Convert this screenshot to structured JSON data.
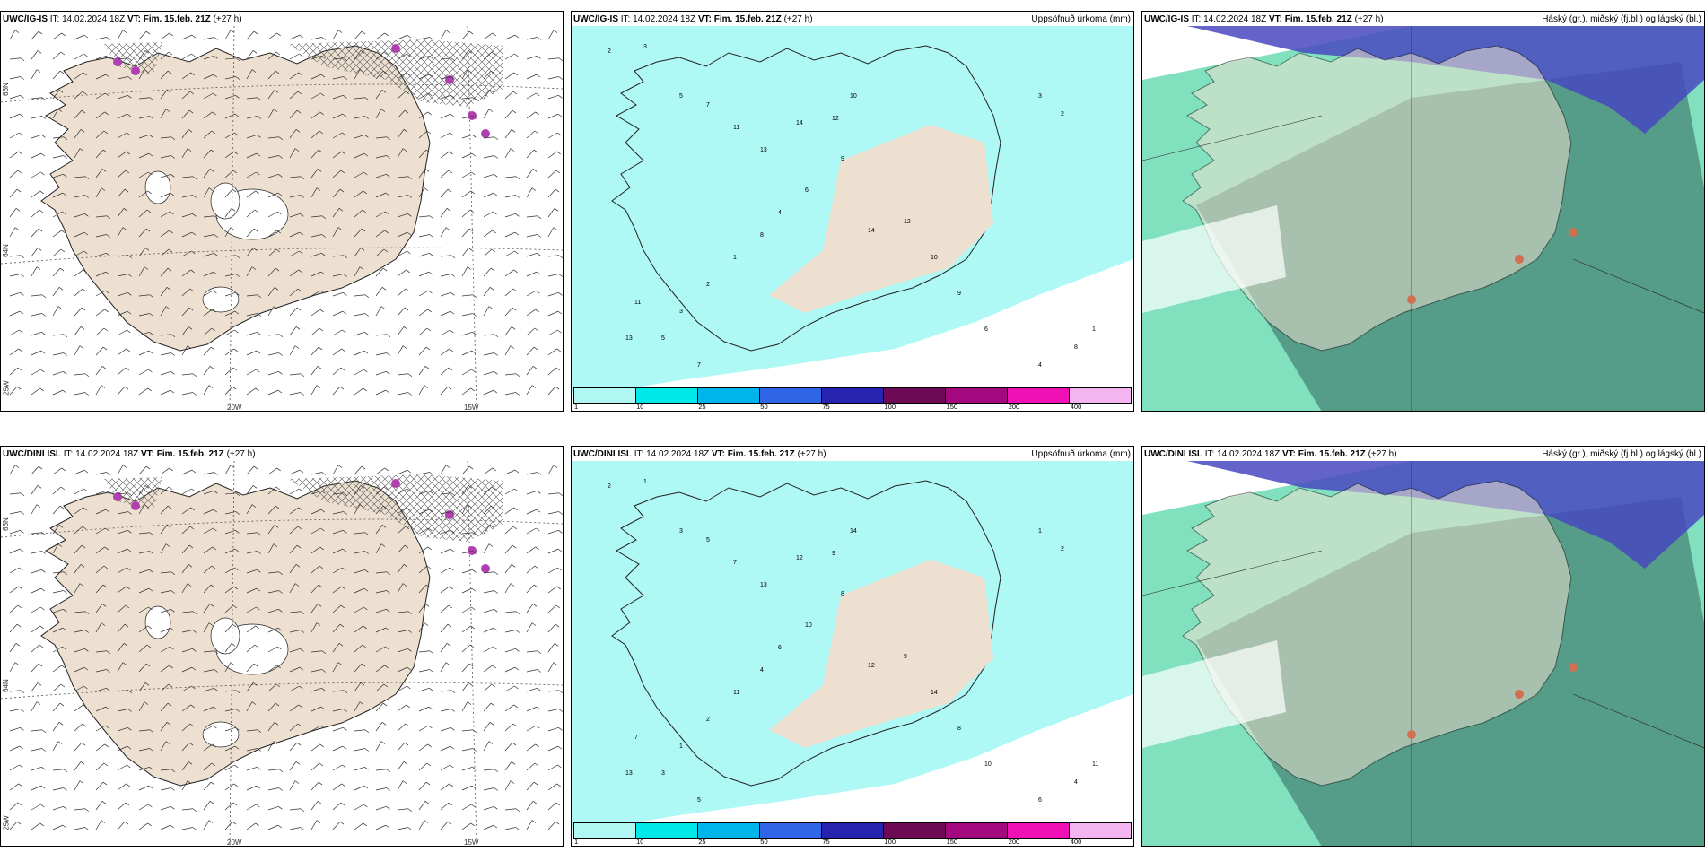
{
  "panels": [
    {
      "model": "UWC/IG-IS",
      "it_label": "IT:",
      "it": "14.02.2024 18Z",
      "vt_label": "VT:",
      "vt": "Fim. 15.feb. 21Z",
      "lead": "(+27 h)",
      "right": ""
    },
    {
      "model": "UWC/IG-IS",
      "it_label": "IT:",
      "it": "14.02.2024 18Z",
      "vt_label": "VT:",
      "vt": "Fim. 15.feb. 21Z",
      "lead": "(+27 h)",
      "right": "Uppsöfnuð úrkoma (mm)"
    },
    {
      "model": "UWC/IG-IS",
      "it_label": "IT:",
      "it": "14.02.2024 18Z",
      "vt_label": "VT:",
      "vt": "Fim. 15.feb. 21Z",
      "lead": "(+27 h)",
      "right": "Háský (gr.), miðský (fj.bl.) og lágský (bl.)"
    },
    {
      "model": "UWC/DINI ISL",
      "it_label": "IT:",
      "it": "14.02.2024 18Z",
      "vt_label": "VT:",
      "vt": "Fim. 15.feb. 21Z",
      "lead": "(+27 h)",
      "right": ""
    },
    {
      "model": "UWC/DINI ISL",
      "it_label": "IT:",
      "it": "14.02.2024 18Z",
      "vt_label": "VT:",
      "vt": "Fim. 15.feb. 21Z",
      "lead": "(+27 h)",
      "right": "Uppsöfnuð úrkoma (mm)"
    },
    {
      "model": "UWC/DINI ISL",
      "it_label": "IT:",
      "it": "14.02.2024 18Z",
      "vt_label": "VT:",
      "vt": "Fim. 15.feb. 21Z",
      "lead": "(+27 h)",
      "right": "Háský (gr.), miðský (fj.bl.) og lágský (bl.)"
    }
  ],
  "axis_labels": {
    "lat66": "66N",
    "lat64": "64N",
    "lon25": "25W",
    "lon20": "20W",
    "lon15": "15W"
  },
  "colorbar": {
    "ticks": [
      "1",
      "10",
      "25",
      "50",
      "75",
      "100",
      "150",
      "200",
      "400"
    ],
    "colors": [
      "#b0f7f4",
      "#00e8e8",
      "#00b4ec",
      "#2f66e8",
      "#2623b0",
      "#6e0a55",
      "#a3087f",
      "#ef10b6",
      "#f4b4f0"
    ]
  },
  "colors": {
    "land": "#ede0d0",
    "sea_precip": "#aef8f5",
    "high_cloud": "#4a8c7a",
    "mid_cloud": "#1ac88a",
    "low_cloud": "#4848c0"
  },
  "precip_labels_top": [
    "2",
    "3",
    "5",
    "7",
    "11",
    "13",
    "14",
    "12",
    "10",
    "9",
    "6",
    "4",
    "8",
    "1"
  ],
  "precip_labels_bottom": [
    "2",
    "1",
    "3",
    "5",
    "7",
    "13",
    "12",
    "9",
    "14",
    "8",
    "10",
    "6",
    "4",
    "11"
  ]
}
